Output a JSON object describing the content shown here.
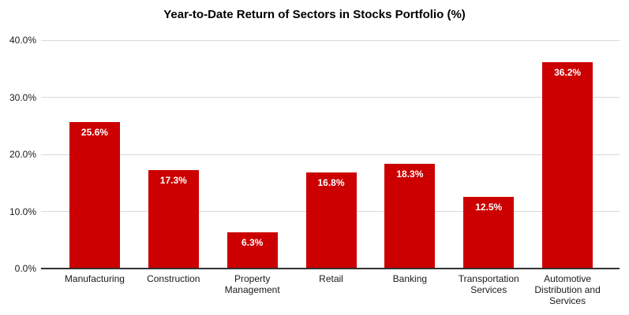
{
  "chart_data": {
    "type": "bar",
    "title": "Year-to-Date Return of Sectors in Stocks Portfolio (%)",
    "categories": [
      "Manufacturing",
      "Construction",
      "Property Management",
      "Retail",
      "Banking",
      "Transportation Services",
      "Automotive Distribution and Services"
    ],
    "values": [
      25.6,
      17.3,
      6.3,
      16.8,
      18.3,
      12.5,
      36.2
    ],
    "value_labels": [
      "25.6%",
      "17.3%",
      "6.3%",
      "16.8%",
      "18.3%",
      "12.5%",
      "36.2%"
    ],
    "xlabel": "",
    "ylabel": "",
    "ylim": [
      0,
      40
    ],
    "y_ticks": [
      "40.0%",
      "30.0%",
      "20.0%",
      "10.0%",
      "0.0%"
    ],
    "grid": "horizontal",
    "legend": "none",
    "bar_color": "#cc0000",
    "value_label_color": "#ffffff"
  },
  "colors": {
    "background": "#ffffff",
    "gridline": "#d9d9d9",
    "axis_line": "#333333",
    "axis_text": "#1a1a1a",
    "title_text": "#000000"
  }
}
